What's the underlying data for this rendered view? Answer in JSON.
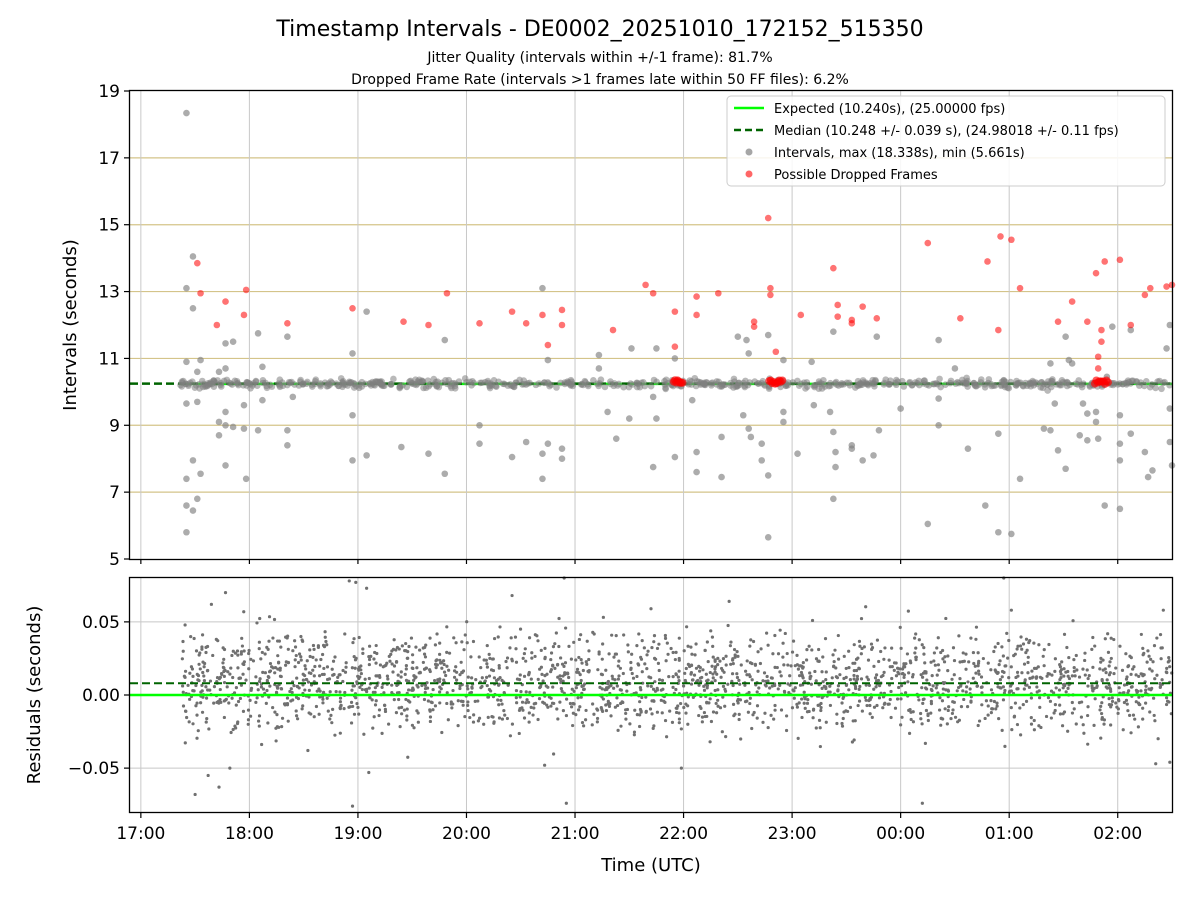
{
  "chart_data": [
    {
      "type": "scatter",
      "title": "Timestamp Intervals - DE0002_20251010_172152_515350",
      "subtitle_lines": [
        "Jitter Quality (intervals within +/-1 frame): 81.7%",
        "Dropped Frame Rate (intervals >1 frames late within 50 FF files): 6.2%"
      ],
      "xlabel": "",
      "ylabel": "Intervals (seconds)",
      "xlim": [
        16.9,
        26.5
      ],
      "ylim": [
        5,
        19
      ],
      "yticks": [
        5,
        7,
        9,
        11,
        13,
        15,
        17,
        19
      ],
      "grid": true,
      "legend_position": "top-right",
      "series": [
        {
          "name": "Expected (10.240s), (25.00000 fps)",
          "kind": "line",
          "style": "solid",
          "color": "#00ff00",
          "y": 10.24,
          "x_range": [
            17.35,
            26.5
          ]
        },
        {
          "name": "Median (10.248 +/- 0.039 s), (24.98018 +/- 0.11 fps)",
          "kind": "line",
          "style": "dashed",
          "color": "#006400",
          "y": 10.248,
          "x_range": [
            16.9,
            26.5
          ]
        },
        {
          "name": "Intervals, max (18.338s), min (5.661s)",
          "kind": "scatter",
          "color": "#808080",
          "baseline": {
            "x_start": 17.35,
            "x_end": 26.5,
            "count": 600,
            "center": 10.24,
            "spread": 0.13
          },
          "points": [
            [
              17.42,
              18.34
            ],
            [
              17.42,
              13.1
            ],
            [
              17.42,
              10.9
            ],
            [
              17.42,
              9.65
            ],
            [
              17.42,
              7.4
            ],
            [
              17.42,
              6.6
            ],
            [
              17.42,
              5.8
            ],
            [
              17.48,
              14.05
            ],
            [
              17.48,
              12.5
            ],
            [
              17.48,
              7.95
            ],
            [
              17.48,
              6.45
            ],
            [
              17.52,
              10.6
            ],
            [
              17.52,
              9.7
            ],
            [
              17.52,
              6.8
            ],
            [
              17.55,
              10.95
            ],
            [
              17.55,
              7.55
            ],
            [
              17.72,
              10.6
            ],
            [
              17.72,
              9.1
            ],
            [
              17.72,
              8.7
            ],
            [
              17.78,
              11.45
            ],
            [
              17.78,
              10.7
            ],
            [
              17.78,
              9.4
            ],
            [
              17.78,
              9.0
            ],
            [
              17.78,
              7.8
            ],
            [
              17.85,
              11.5
            ],
            [
              17.85,
              8.95
            ],
            [
              17.95,
              9.6
            ],
            [
              17.95,
              8.9
            ],
            [
              17.97,
              7.4
            ],
            [
              18.08,
              11.75
            ],
            [
              18.08,
              8.85
            ],
            [
              18.12,
              10.75
            ],
            [
              18.12,
              9.75
            ],
            [
              18.35,
              11.65
            ],
            [
              18.35,
              8.85
            ],
            [
              18.35,
              8.4
            ],
            [
              18.4,
              9.85
            ],
            [
              18.95,
              11.15
            ],
            [
              18.95,
              9.3
            ],
            [
              18.95,
              7.95
            ],
            [
              19.08,
              12.4
            ],
            [
              19.08,
              8.1
            ],
            [
              19.4,
              8.35
            ],
            [
              19.65,
              8.15
            ],
            [
              19.8,
              11.55
            ],
            [
              19.8,
              7.55
            ],
            [
              20.12,
              9.0
            ],
            [
              20.12,
              8.45
            ],
            [
              20.42,
              8.05
            ],
            [
              20.55,
              8.5
            ],
            [
              20.7,
              13.1
            ],
            [
              20.7,
              8.15
            ],
            [
              20.7,
              7.4
            ],
            [
              20.75,
              10.95
            ],
            [
              20.75,
              8.45
            ],
            [
              20.88,
              8.3
            ],
            [
              20.88,
              8.0
            ],
            [
              21.22,
              11.1
            ],
            [
              21.22,
              10.7
            ],
            [
              21.3,
              9.4
            ],
            [
              21.38,
              8.6
            ],
            [
              21.5,
              9.2
            ],
            [
              21.52,
              11.3
            ],
            [
              21.72,
              9.85
            ],
            [
              21.72,
              7.75
            ],
            [
              21.75,
              11.3
            ],
            [
              21.75,
              9.2
            ],
            [
              21.92,
              11.0
            ],
            [
              21.92,
              8.05
            ],
            [
              22.08,
              9.75
            ],
            [
              22.12,
              8.2
            ],
            [
              22.12,
              7.6
            ],
            [
              22.35,
              8.65
            ],
            [
              22.35,
              7.45
            ],
            [
              22.5,
              11.65
            ],
            [
              22.55,
              9.3
            ],
            [
              22.58,
              11.55
            ],
            [
              22.6,
              11.15
            ],
            [
              22.6,
              8.9
            ],
            [
              22.62,
              8.65
            ],
            [
              22.72,
              8.45
            ],
            [
              22.72,
              7.95
            ],
            [
              22.78,
              11.7
            ],
            [
              22.78,
              5.65
            ],
            [
              22.78,
              7.5
            ],
            [
              22.92,
              10.95
            ],
            [
              22.92,
              9.4
            ],
            [
              22.92,
              9.1
            ],
            [
              23.05,
              8.15
            ],
            [
              23.18,
              10.9
            ],
            [
              23.2,
              9.6
            ],
            [
              23.35,
              9.4
            ],
            [
              23.38,
              11.8
            ],
            [
              23.38,
              8.8
            ],
            [
              23.38,
              6.8
            ],
            [
              23.4,
              8.2
            ],
            [
              23.4,
              7.75
            ],
            [
              23.55,
              8.4
            ],
            [
              23.55,
              8.3
            ],
            [
              23.65,
              7.95
            ],
            [
              23.75,
              8.1
            ],
            [
              23.78,
              11.65
            ],
            [
              23.8,
              8.85
            ],
            [
              24.0,
              9.5
            ],
            [
              24.25,
              6.05
            ],
            [
              24.35,
              11.55
            ],
            [
              24.35,
              9.8
            ],
            [
              24.35,
              9.0
            ],
            [
              24.5,
              10.7
            ],
            [
              24.62,
              8.3
            ],
            [
              24.78,
              6.6
            ],
            [
              24.9,
              8.75
            ],
            [
              24.9,
              5.8
            ],
            [
              24.95,
              10.35
            ],
            [
              25.02,
              5.75
            ],
            [
              25.1,
              7.4
            ],
            [
              25.32,
              8.9
            ],
            [
              25.38,
              10.85
            ],
            [
              25.38,
              8.85
            ],
            [
              25.42,
              9.65
            ],
            [
              25.45,
              8.25
            ],
            [
              25.52,
              7.7
            ],
            [
              25.52,
              11.65
            ],
            [
              25.55,
              10.95
            ],
            [
              25.58,
              10.85
            ],
            [
              25.65,
              8.7
            ],
            [
              25.68,
              9.65
            ],
            [
              25.72,
              9.35
            ],
            [
              25.72,
              8.55
            ],
            [
              25.8,
              9.4
            ],
            [
              25.8,
              9.1
            ],
            [
              25.82,
              8.6
            ],
            [
              25.88,
              6.6
            ],
            [
              25.9,
              10.45
            ],
            [
              25.95,
              11.95
            ],
            [
              26.02,
              8.45
            ],
            [
              26.02,
              7.95
            ],
            [
              26.02,
              9.3
            ],
            [
              26.02,
              6.5
            ],
            [
              26.12,
              11.85
            ],
            [
              26.12,
              8.75
            ],
            [
              26.25,
              8.2
            ],
            [
              26.28,
              7.45
            ],
            [
              26.32,
              7.65
            ],
            [
              26.45,
              11.3
            ],
            [
              26.48,
              12.0
            ],
            [
              26.48,
              9.5
            ],
            [
              26.48,
              8.5
            ],
            [
              26.5,
              7.8
            ]
          ]
        },
        {
          "name": "Possible Dropped Frames",
          "kind": "scatter",
          "color": "#ff0000",
          "points": [
            [
              17.52,
              13.85
            ],
            [
              17.55,
              12.95
            ],
            [
              17.7,
              12.0
            ],
            [
              17.78,
              12.7
            ],
            [
              17.95,
              12.3
            ],
            [
              17.97,
              13.05
            ],
            [
              18.35,
              12.05
            ],
            [
              18.95,
              12.5
            ],
            [
              19.42,
              12.1
            ],
            [
              19.65,
              12.0
            ],
            [
              19.82,
              12.95
            ],
            [
              20.12,
              12.05
            ],
            [
              20.42,
              12.4
            ],
            [
              20.55,
              12.05
            ],
            [
              20.7,
              12.3
            ],
            [
              20.75,
              11.4
            ],
            [
              20.88,
              12.45
            ],
            [
              20.88,
              12.0
            ],
            [
              21.35,
              11.85
            ],
            [
              21.65,
              13.2
            ],
            [
              21.72,
              12.95
            ],
            [
              21.92,
              12.4
            ],
            [
              21.92,
              11.35
            ],
            [
              22.12,
              12.85
            ],
            [
              22.12,
              12.3
            ],
            [
              22.32,
              12.95
            ],
            [
              22.65,
              12.1
            ],
            [
              22.65,
              11.95
            ],
            [
              22.78,
              15.2
            ],
            [
              22.8,
              13.1
            ],
            [
              22.8,
              12.9
            ],
            [
              22.85,
              11.2
            ],
            [
              23.08,
              12.3
            ],
            [
              23.38,
              13.7
            ],
            [
              23.42,
              12.6
            ],
            [
              23.42,
              12.25
            ],
            [
              23.55,
              12.15
            ],
            [
              23.55,
              12.05
            ],
            [
              23.65,
              12.55
            ],
            [
              23.78,
              12.2
            ],
            [
              24.25,
              14.45
            ],
            [
              24.55,
              12.2
            ],
            [
              24.8,
              13.9
            ],
            [
              24.9,
              11.85
            ],
            [
              24.92,
              14.65
            ],
            [
              25.02,
              14.55
            ],
            [
              25.1,
              13.1
            ],
            [
              25.45,
              12.1
            ],
            [
              25.58,
              12.7
            ],
            [
              25.72,
              12.1
            ],
            [
              25.8,
              13.55
            ],
            [
              25.82,
              10.7
            ],
            [
              25.82,
              11.05
            ],
            [
              25.85,
              11.85
            ],
            [
              25.85,
              11.5
            ],
            [
              25.88,
              13.9
            ],
            [
              26.02,
              13.95
            ],
            [
              26.12,
              12.0
            ],
            [
              26.25,
              12.9
            ],
            [
              26.3,
              13.1
            ],
            [
              26.45,
              13.15
            ],
            [
              26.5,
              13.2
            ]
          ],
          "clusters": [
            {
              "x": 21.95,
              "width": 0.08,
              "y": 10.3,
              "count": 8
            },
            {
              "x": 22.85,
              "width": 0.12,
              "y": 10.3,
              "count": 10
            },
            {
              "x": 25.85,
              "width": 0.12,
              "y": 10.3,
              "count": 10
            }
          ]
        }
      ]
    },
    {
      "type": "scatter",
      "title": "",
      "xlabel": "Time (UTC)",
      "ylabel": "Residuals (seconds)",
      "xlim": [
        16.9,
        26.5
      ],
      "ylim": [
        -0.08,
        0.08
      ],
      "yticks": [
        -0.05,
        0.0,
        0.05
      ],
      "ytick_labels": [
        "−0.05",
        "0.00",
        "0.05"
      ],
      "xticks": [
        17,
        18,
        19,
        20,
        21,
        22,
        23,
        24,
        25,
        26
      ],
      "xtick_labels": [
        "17:00",
        "18:00",
        "19:00",
        "20:00",
        "21:00",
        "22:00",
        "23:00",
        "00:00",
        "01:00",
        "02:00"
      ],
      "grid": true,
      "series": [
        {
          "name": "Expected",
          "kind": "line",
          "style": "solid",
          "color": "#00ff00",
          "y": 0.0
        },
        {
          "name": "Median",
          "kind": "line",
          "style": "dashed",
          "color": "#006400",
          "y": 0.008
        },
        {
          "name": "Residuals",
          "kind": "scatter",
          "color": "#707070",
          "cloud": {
            "x_start": 17.38,
            "x_end": 26.5,
            "count": 2200,
            "center": 0.008,
            "spread": 0.022
          },
          "points": [
            [
              17.5,
              -0.068
            ],
            [
              17.72,
              -0.063
            ],
            [
              17.62,
              -0.055
            ],
            [
              17.82,
              -0.05
            ],
            [
              17.65,
              0.062
            ],
            [
              17.78,
              0.07
            ],
            [
              18.92,
              0.078
            ],
            [
              18.98,
              0.077
            ],
            [
              19.08,
              0.073
            ],
            [
              19.1,
              -0.053
            ],
            [
              18.95,
              -0.076
            ],
            [
              20.42,
              0.068
            ],
            [
              20.72,
              -0.048
            ],
            [
              20.9,
              0.08
            ],
            [
              20.92,
              -0.074
            ],
            [
              21.7,
              0.059
            ],
            [
              21.98,
              -0.05
            ],
            [
              22.42,
              0.064
            ],
            [
              24.2,
              -0.074
            ],
            [
              24.95,
              0.08
            ],
            [
              25.02,
              0.058
            ],
            [
              26.42,
              0.058
            ],
            [
              26.35,
              -0.047
            ],
            [
              26.48,
              -0.046
            ]
          ]
        }
      ]
    }
  ]
}
